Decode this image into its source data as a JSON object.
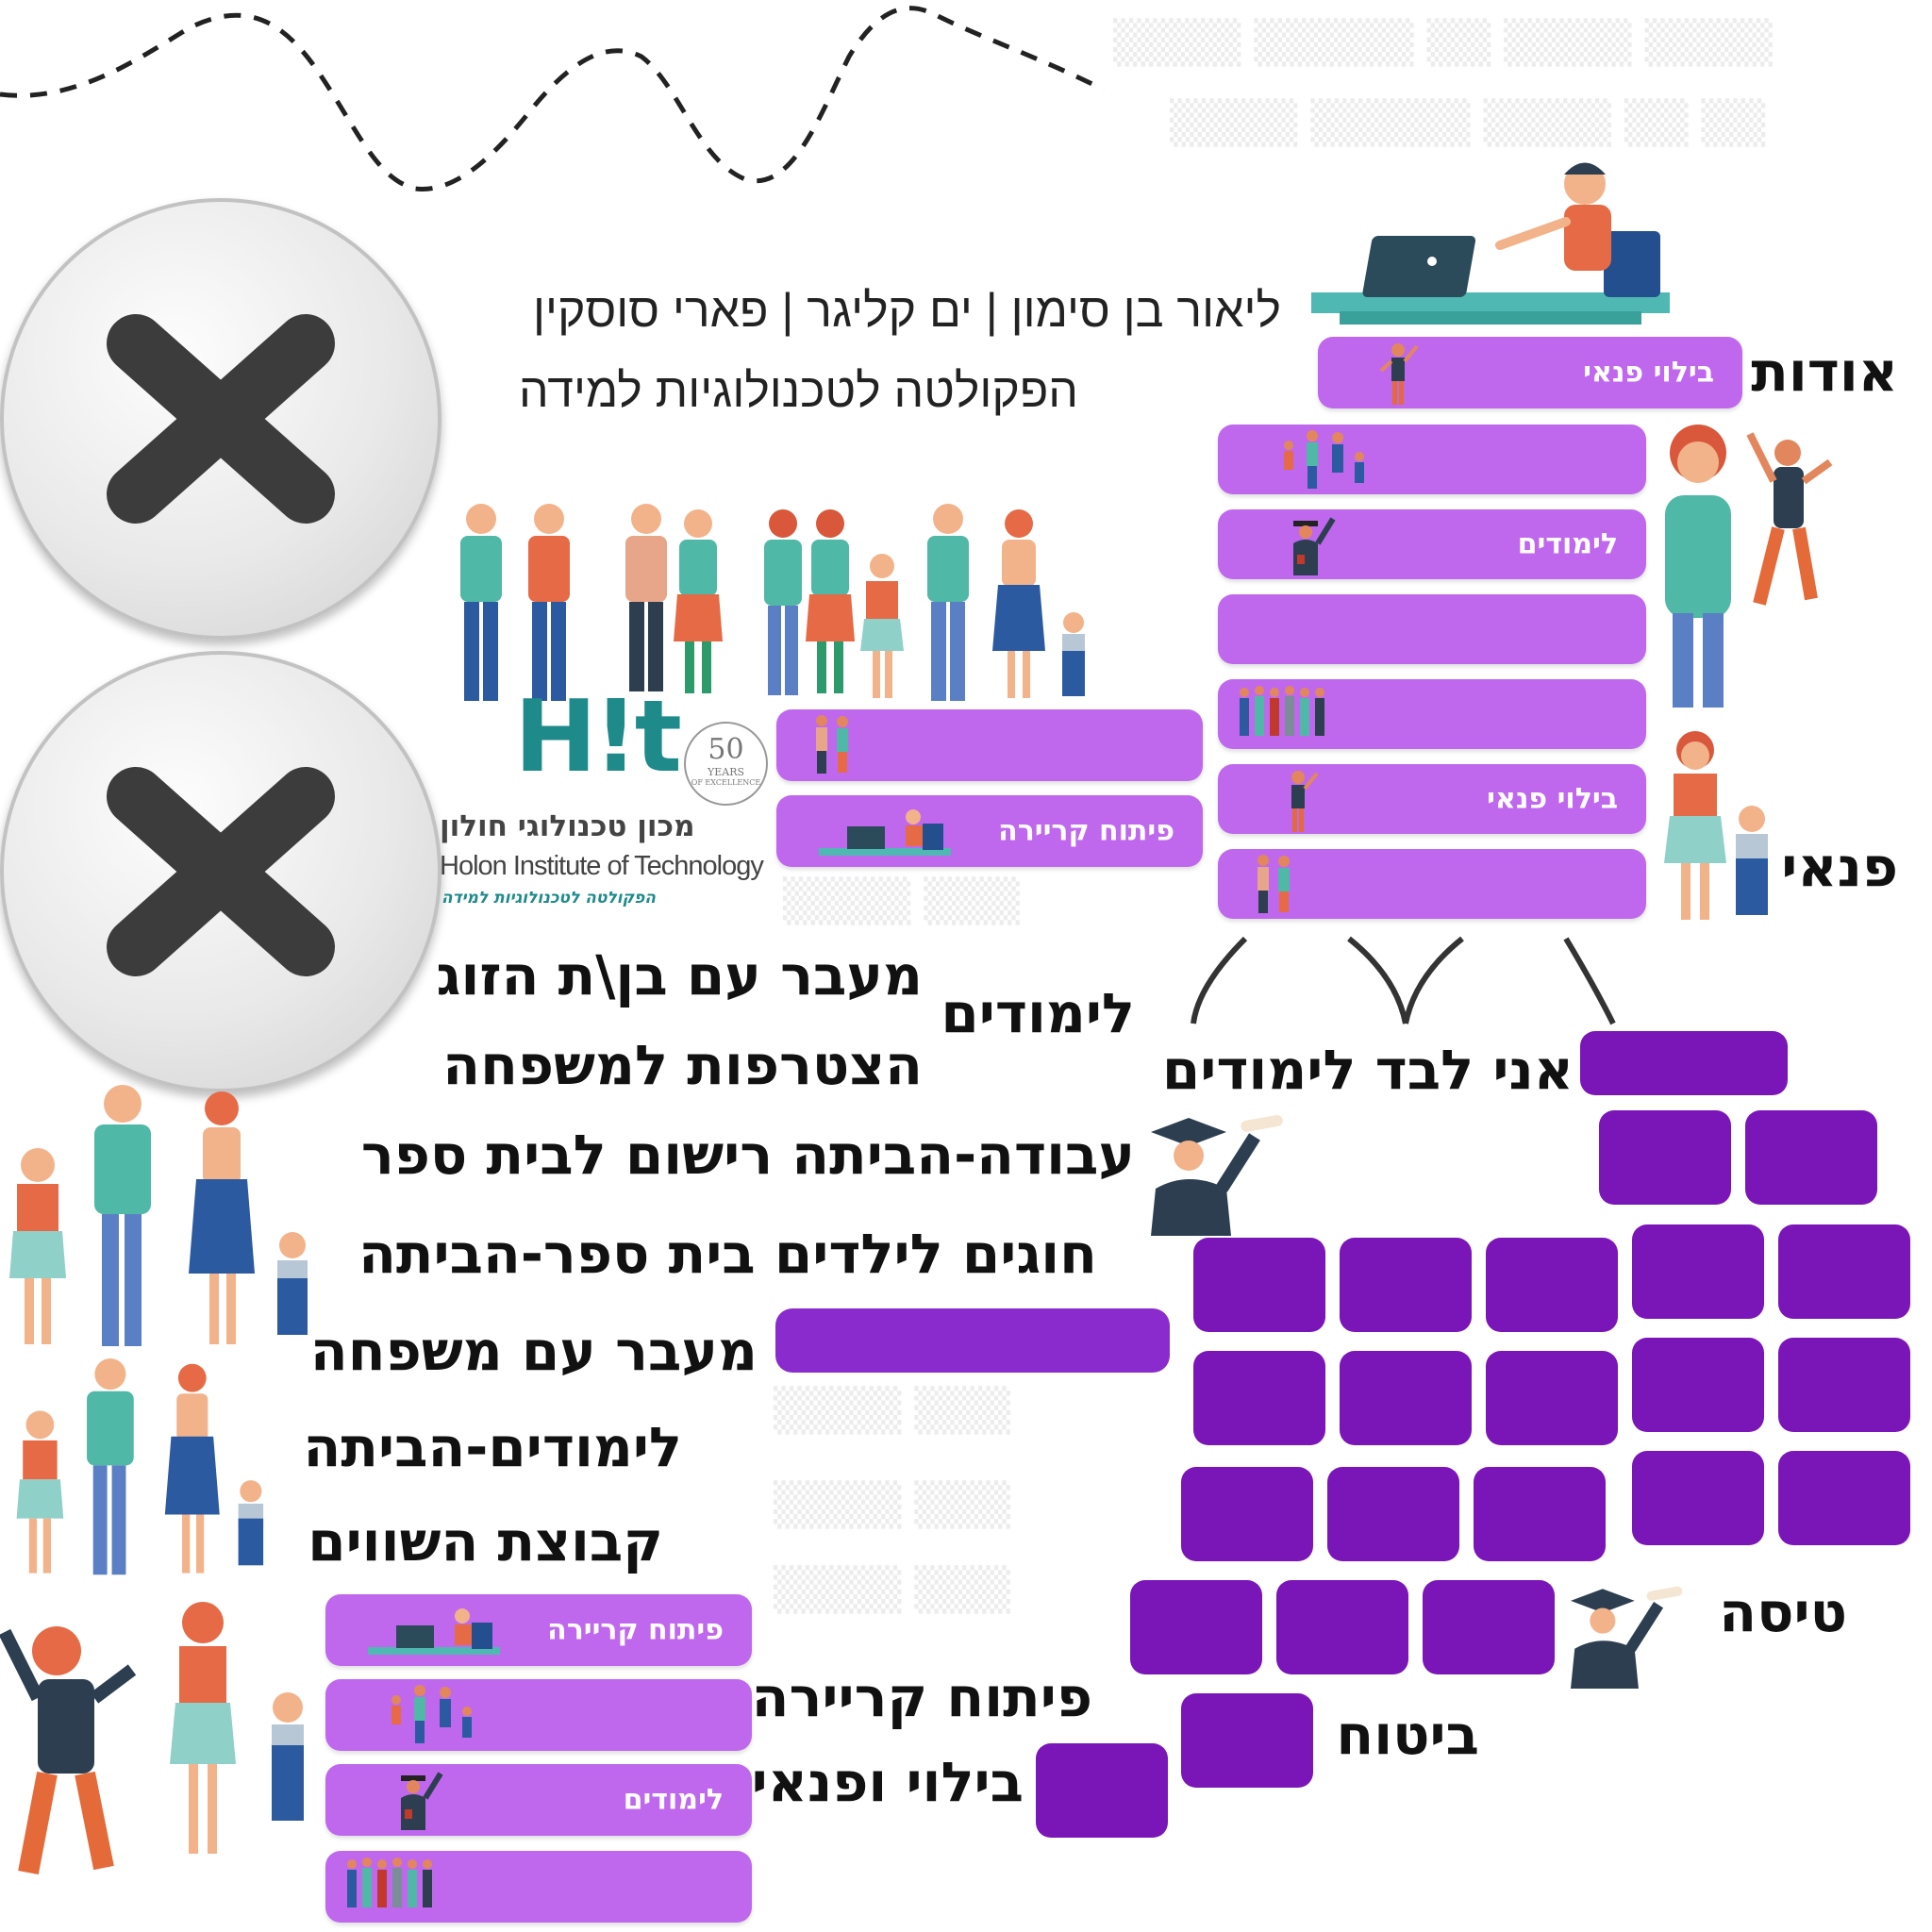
{
  "authors": "ליאור בן סימון | ים קליגר | פארי סוסקין",
  "faculty": "הפקולטה לטכנולוגיות למידה",
  "logo": {
    "mark": "H!t",
    "anniversary": "50",
    "years": "YEARS",
    "excellence": "OF EXCELLENCE",
    "name_he": "מכון טכנולוגי חולון",
    "name_en": "Holon Institute of Technology",
    "faculty_he": "הפקולטה לטכנולוגיות למידה"
  },
  "headings": {
    "about": "אודות",
    "leisure": "פנאי",
    "studies": "לימודים",
    "alone_studies": "אני לבד לימודים",
    "flight": "טיסה",
    "insurance": "ביטוח",
    "career": "פיתוח קריירה",
    "leisure_fun": "בילוי ופנאי"
  },
  "menu_items": [
    "מעבר עם בן\\ת הזוג",
    "הצטרפות למשפחה",
    "עבודה-הביתה רישום לבית ספר",
    "חוגים לילדים בית ספר-הביתה",
    "מעבר עם משפחה",
    "לימודים-הביתה",
    "קבוצת השווים"
  ],
  "pills": {
    "top_leisure": "בילוי פנאי",
    "studies": "לימודים",
    "leisure": "בילוי פנאי",
    "career": "פיתוח קריירה",
    "career_bottom": "פיתוח קריירה",
    "studies_bottom": "לימודים"
  },
  "icons": [
    "close-icon",
    "close-icon"
  ],
  "colors": {
    "pill": "#bf68ee",
    "brick": "#7a15b8",
    "teal": "#1f8a8a"
  }
}
